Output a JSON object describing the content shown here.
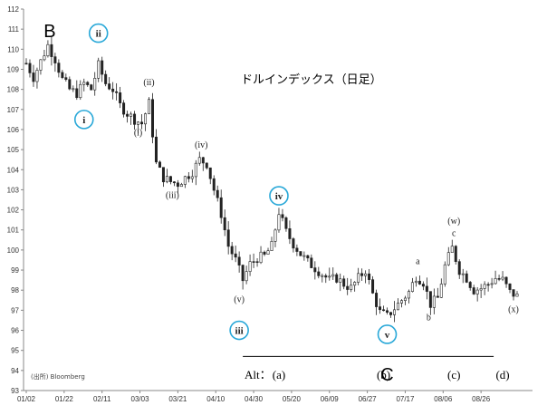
{
  "chart_data": {
    "type": "candlestick",
    "title": "ドルインデックス（日足）",
    "source": "(出所) Bloomberg",
    "ylim": [
      93,
      112
    ],
    "y_ticks": [
      "93",
      "94",
      "95",
      "96",
      "97",
      "98",
      "99",
      "100",
      "101",
      "102",
      "103",
      "104",
      "105",
      "106",
      "107",
      "108",
      "109",
      "110",
      "111",
      "112"
    ],
    "x_ticks": [
      "01/02",
      "01/22",
      "02/11",
      "03/03",
      "03/21",
      "04/10",
      "04/30",
      "05/20",
      "06/09",
      "06/27",
      "07/17",
      "08/06",
      "08/26"
    ],
    "series_path": [
      [
        0,
        109.3
      ],
      [
        4,
        108.6
      ],
      [
        8,
        109.4
      ],
      [
        12,
        110.2
      ],
      [
        16,
        109.5
      ],
      [
        20,
        108.5
      ],
      [
        24,
        108.0
      ],
      [
        28,
        107.8
      ],
      [
        32,
        108.3
      ],
      [
        36,
        108.0
      ],
      [
        40,
        109.2
      ],
      [
        44,
        108.3
      ],
      [
        48,
        108.0
      ],
      [
        52,
        107.2
      ],
      [
        56,
        106.8
      ],
      [
        60,
        106.5
      ],
      [
        64,
        106.3
      ],
      [
        68,
        107.3
      ],
      [
        72,
        104.3
      ],
      [
        76,
        103.6
      ],
      [
        80,
        103.4
      ],
      [
        84,
        103.3
      ],
      [
        88,
        103.6
      ],
      [
        92,
        103.9
      ],
      [
        96,
        104.5
      ],
      [
        100,
        104.3
      ],
      [
        104,
        103.0
      ],
      [
        108,
        101.8
      ],
      [
        112,
        100.2
      ],
      [
        116,
        99.5
      ],
      [
        120,
        98.5
      ],
      [
        124,
        99.3
      ],
      [
        128,
        99.6
      ],
      [
        132,
        99.7
      ],
      [
        136,
        100.2
      ],
      [
        140,
        101.9
      ],
      [
        144,
        100.9
      ],
      [
        148,
        100.3
      ],
      [
        152,
        99.8
      ],
      [
        156,
        99.4
      ],
      [
        160,
        99.1
      ],
      [
        164,
        98.8
      ],
      [
        168,
        98.5
      ],
      [
        172,
        98.6
      ],
      [
        176,
        98.3
      ],
      [
        180,
        98.1
      ],
      [
        184,
        98.6
      ],
      [
        188,
        99.0
      ],
      [
        192,
        97.8
      ],
      [
        196,
        96.9
      ],
      [
        200,
        96.7
      ],
      [
        204,
        97.1
      ],
      [
        208,
        97.5
      ],
      [
        212,
        97.9
      ],
      [
        216,
        98.7
      ],
      [
        220,
        98.4
      ],
      [
        224,
        97.3
      ],
      [
        228,
        97.6
      ],
      [
        232,
        99.2
      ],
      [
        236,
        100.1
      ],
      [
        240,
        99.0
      ],
      [
        244,
        98.6
      ],
      [
        248,
        98.0
      ],
      [
        252,
        98.1
      ],
      [
        256,
        98.3
      ],
      [
        260,
        98.6
      ],
      [
        264,
        98.5
      ],
      [
        268,
        97.9
      ],
      [
        272,
        97.7
      ]
    ],
    "x_index_max": 272,
    "tick_index": [
      0,
      21,
      42,
      63,
      84,
      105,
      126,
      147,
      168,
      189,
      210,
      231,
      252
    ],
    "wave_labels": [
      {
        "text": "(ii)",
        "x": 68,
        "y": 108.2
      },
      {
        "text": "(i)",
        "x": 62,
        "y": 105.7
      },
      {
        "text": "(iii)",
        "x": 81,
        "y": 102.6
      },
      {
        "text": "(iv)",
        "x": 97,
        "y": 105.1
      },
      {
        "text": "(v)",
        "x": 118,
        "y": 97.4
      },
      {
        "text": "(w)",
        "x": 237,
        "y": 101.3
      },
      {
        "text": "c",
        "x": 237,
        "y": 100.7
      },
      {
        "text": "a",
        "x": 217,
        "y": 99.3
      },
      {
        "text": "b",
        "x": 223,
        "y": 96.5
      },
      {
        "text": "(x)",
        "x": 270,
        "y": 96.9
      }
    ],
    "circle_labels": [
      {
        "text": "ii",
        "x": 40,
        "y": 110.8
      },
      {
        "text": "i",
        "x": 32,
        "y": 106.5
      },
      {
        "text": "iv",
        "x": 140,
        "y": 102.7
      },
      {
        "text": "iii",
        "x": 118,
        "y": 96.0
      },
      {
        "text": "v",
        "x": 200,
        "y": 95.8
      }
    ],
    "big_labels": [
      {
        "text": "B",
        "x": 13,
        "y": 110.6
      },
      {
        "text": "C",
        "x": 200,
        "y": 93.5
      }
    ],
    "alt_prefix": "Alt：",
    "alt_labels": [
      {
        "text": "(a)",
        "x": 140
      },
      {
        "text": "(b)",
        "x": 198
      },
      {
        "text": "(c)",
        "x": 237
      },
      {
        "text": "(d)",
        "x": 264
      }
    ],
    "alt_line": {
      "x1": 120,
      "x2": 259,
      "y": 94.7
    }
  }
}
